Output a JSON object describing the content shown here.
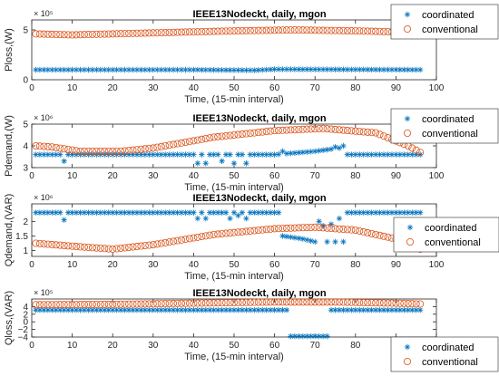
{
  "colors": {
    "coordinated": "#0072BD",
    "conventional": "#D95319"
  },
  "chart_data": [
    {
      "type": "scatter",
      "title": "IEEE13Nodeckt, daily, mgon",
      "xlabel": "Time, (15-min interval)",
      "ylabel": "Ploss,(W)",
      "exponent": "× 10⁵",
      "xlim": [
        0,
        100
      ],
      "ylim": [
        0,
        6
      ],
      "yticks": [
        0,
        5
      ],
      "legend": {
        "placement": "top-right-outside",
        "entries": [
          "coordinated",
          "conventional"
        ]
      },
      "series": [
        {
          "name": "coordinated",
          "marker": "asterisk",
          "x_start": 1,
          "x_end": 96,
          "keypoints": [
            [
              1,
              1.0
            ],
            [
              40,
              1.0
            ],
            [
              55,
              0.95
            ],
            [
              60,
              1.05
            ],
            [
              96,
              1.0
            ]
          ]
        },
        {
          "name": "conventional",
          "marker": "circle",
          "x_start": 1,
          "x_end": 96,
          "keypoints": [
            [
              1,
              4.6
            ],
            [
              10,
              4.5
            ],
            [
              30,
              4.7
            ],
            [
              50,
              4.9
            ],
            [
              65,
              5.0
            ],
            [
              80,
              4.9
            ],
            [
              90,
              4.8
            ],
            [
              96,
              4.5
            ]
          ]
        }
      ]
    },
    {
      "type": "scatter",
      "title": "IEEE13Nodeckt, daily, mgon",
      "xlabel": "Time, (15-min interval)",
      "ylabel": "Pdemand,(W)",
      "exponent": "× 10⁶",
      "xlim": [
        0,
        100
      ],
      "ylim": [
        3,
        5
      ],
      "yticks": [
        3,
        4,
        5
      ],
      "legend": {
        "placement": "top-right-outside",
        "entries": [
          "coordinated",
          "conventional"
        ]
      },
      "series": [
        {
          "name": "coordinated",
          "marker": "asterisk",
          "x_start": 1,
          "x_end": 96,
          "keypoints": [
            [
              1,
              3.6
            ],
            [
              60,
              3.6
            ],
            [
              70,
              3.75
            ],
            [
              76,
              3.9
            ],
            [
              78,
              3.6
            ],
            [
              96,
              3.6
            ]
          ],
          "outliers": [
            [
              8,
              3.3
            ],
            [
              41,
              3.2
            ],
            [
              43,
              3.2
            ],
            [
              47,
              3.3
            ],
            [
              50,
              3.2
            ],
            [
              53,
              3.2
            ],
            [
              62,
              3.75
            ],
            [
              75,
              3.95
            ],
            [
              77,
              4.0
            ]
          ]
        },
        {
          "name": "conventional",
          "marker": "circle",
          "x_start": 1,
          "x_end": 96,
          "keypoints": [
            [
              1,
              4.0
            ],
            [
              5,
              3.95
            ],
            [
              12,
              3.75
            ],
            [
              22,
              3.75
            ],
            [
              30,
              3.9
            ],
            [
              45,
              4.4
            ],
            [
              60,
              4.7
            ],
            [
              72,
              4.8
            ],
            [
              85,
              4.6
            ],
            [
              93,
              4.0
            ],
            [
              96,
              3.7
            ]
          ]
        }
      ]
    },
    {
      "type": "scatter",
      "title": "IEEE13Nodeckt, daily, mgon",
      "xlabel": "Time, (15-min interval)",
      "ylabel": "Qdemand,(VAR)",
      "exponent": "× 10⁶",
      "xlim": [
        0,
        100
      ],
      "ylim": [
        0.8,
        2.6
      ],
      "yticks": [
        1,
        1.5,
        2
      ],
      "legend": {
        "placement": "middle-right-inside",
        "entries": [
          "coordinated",
          "conventional"
        ]
      },
      "series": [
        {
          "name": "coordinated",
          "marker": "asterisk",
          "x_start": 1,
          "x_end": 96,
          "keypoints": [
            [
              1,
              2.3
            ],
            [
              61,
              2.3
            ],
            [
              62,
              1.5
            ],
            [
              67,
              1.4
            ],
            [
              70,
              1.3
            ],
            [
              77,
              1.3
            ],
            [
              78,
              2.3
            ],
            [
              96,
              2.3
            ]
          ],
          "outliers": [
            [
              8,
              2.05
            ],
            [
              41,
              2.1
            ],
            [
              43,
              2.1
            ],
            [
              49,
              2.1
            ],
            [
              51,
              2.2
            ],
            [
              53,
              2.1
            ],
            [
              71,
              2.0
            ],
            [
              72,
              1.85
            ],
            [
              74,
              1.9
            ],
            [
              76,
              2.1
            ]
          ]
        },
        {
          "name": "conventional",
          "marker": "circle",
          "x_start": 1,
          "x_end": 96,
          "keypoints": [
            [
              1,
              1.25
            ],
            [
              10,
              1.15
            ],
            [
              20,
              1.05
            ],
            [
              30,
              1.2
            ],
            [
              45,
              1.55
            ],
            [
              60,
              1.75
            ],
            [
              70,
              1.8
            ],
            [
              80,
              1.7
            ],
            [
              90,
              1.4
            ],
            [
              96,
              1.05
            ]
          ]
        }
      ]
    },
    {
      "type": "scatter",
      "title": "IEEE13Nodeckt, daily, mgon",
      "xlabel": "Time, (15-min interval)",
      "ylabel": "Qloss,(VAR)",
      "exponent": "× 10⁵",
      "xlim": [
        0,
        100
      ],
      "ylim": [
        -4,
        6
      ],
      "yticks": [
        -4,
        -2,
        0,
        2,
        4
      ],
      "legend": {
        "placement": "bottom-right-outside",
        "entries": [
          "coordinated",
          "conventional"
        ]
      },
      "series": [
        {
          "name": "coordinated",
          "marker": "asterisk",
          "x_start": 1,
          "x_end": 96,
          "keypoints": [
            [
              1,
              3.1
            ],
            [
              61,
              3.1
            ],
            [
              62,
              3.1
            ],
            [
              96,
              3.1
            ]
          ],
          "segment": {
            "x_from": 64,
            "x_to": 73,
            "y": -3.8
          }
        },
        {
          "name": "conventional",
          "marker": "circle",
          "x_start": 1,
          "x_end": 96,
          "keypoints": [
            [
              1,
              4.5
            ],
            [
              20,
              4.6
            ],
            [
              40,
              4.9
            ],
            [
              60,
              5.2
            ],
            [
              75,
              5.2
            ],
            [
              90,
              4.9
            ],
            [
              96,
              4.7
            ]
          ]
        }
      ]
    }
  ]
}
